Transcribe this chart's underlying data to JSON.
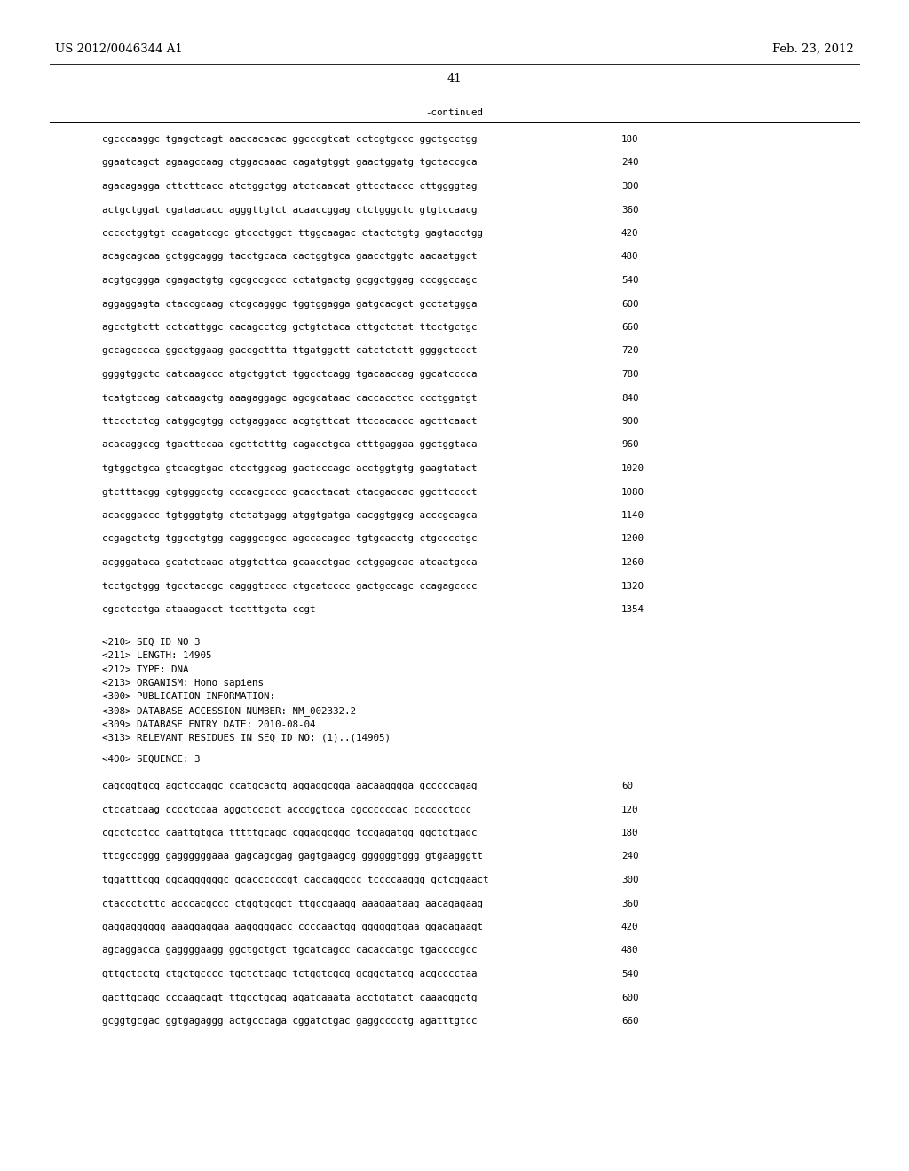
{
  "header_left": "US 2012/0046344 A1",
  "header_right": "Feb. 23, 2012",
  "page_number": "41",
  "continued_label": "-continued",
  "background_color": "#ffffff",
  "text_color": "#000000",
  "font_size_header": 9.5,
  "font_size_body": 7.8,
  "font_size_page": 9.5,
  "sequence_lines_part1": [
    [
      "cgcccaaggc tgagctcagt aaccacacac ggcccgtcat cctcgtgccc ggctgcctgg",
      "180"
    ],
    [
      "ggaatcagct agaagccaag ctggacaaac cagatgtggt gaactggatg tgctaccgca",
      "240"
    ],
    [
      "agacagagga cttcttcacc atctggctgg atctcaacat gttcctaccc cttggggtag",
      "300"
    ],
    [
      "actgctggat cgataacacc agggttgtct acaaccggag ctctgggctc gtgtccaacg",
      "360"
    ],
    [
      "ccccctggtgt ccagatccgc gtccctggct ttggcaagac ctactctgtg gagtacctgg",
      "420"
    ],
    [
      "acagcagcaa gctggcaggg tacctgcaca cactggtgca gaacctggtc aacaatggct",
      "480"
    ],
    [
      "acgtgcggga cgagactgtg cgcgccgccc cctatgactg gcggctggag cccggccagc",
      "540"
    ],
    [
      "aggaggagta ctaccgcaag ctcgcagggc tggtggagga gatgcacgct gcctatggga",
      "600"
    ],
    [
      "agcctgtctt cctcattggc cacagcctcg gctgtctaca cttgctctat ttcctgctgc",
      "660"
    ],
    [
      "gccagcccca ggcctggaag gaccgcttta ttgatggctt catctctctt ggggctccct",
      "720"
    ],
    [
      "ggggtggctc catcaagccc atgctggtct tggcctcagg tgacaaccag ggcatcccca",
      "780"
    ],
    [
      "tcatgtccag catcaagctg aaagaggagc agcgcataac caccacctcc ccctggatgt",
      "840"
    ],
    [
      "ttccctctcg catggcgtgg cctgaggacc acgtgttcat ttccacaccc agcttcaact",
      "900"
    ],
    [
      "acacaggccg tgacttccaa cgcttctttg cagacctgca ctttgaggaa ggctggtaca",
      "960"
    ],
    [
      "tgtggctgca gtcacgtgac ctcctggcag gactcccagc acctggtgtg gaagtatact",
      "1020"
    ],
    [
      "gtctttacgg cgtgggcctg cccacgcccc gcacctacat ctacgaccac ggcttcccct",
      "1080"
    ],
    [
      "acacggaccc tgtgggtgtg ctctatgagg atggtgatga cacggtggcg acccgcagca",
      "1140"
    ],
    [
      "ccgagctctg tggcctgtgg cagggccgcc agccacagcc tgtgcacctg ctgcccctgc",
      "1200"
    ],
    [
      "acgggataca gcatctcaac atggtcttca gcaacctgac cctggagcac atcaatgcca",
      "1260"
    ],
    [
      "tcctgctggg tgcctaccgc cagggtcccc ctgcatcccc gactgccagc ccagagcccc",
      "1320"
    ],
    [
      "cgcctcctga ataaagacct tcctttgcta ccgt",
      "1354"
    ]
  ],
  "metadata_lines": [
    "<210> SEQ ID NO 3",
    "<211> LENGTH: 14905",
    "<212> TYPE: DNA",
    "<213> ORGANISM: Homo sapiens",
    "<300> PUBLICATION INFORMATION:",
    "<308> DATABASE ACCESSION NUMBER: NM_002332.2",
    "<309> DATABASE ENTRY DATE: 2010-08-04",
    "<313> RELEVANT RESIDUES IN SEQ ID NO: (1)..(14905)"
  ],
  "sequence_label": "<400> SEQUENCE: 3",
  "sequence_lines_part2": [
    [
      "cagcggtgcg agctccaggc ccatgcactg aggaggcgga aacaagggga gcccccagag",
      "60"
    ],
    [
      "ctccatcaag cccctccaa aggctcccct acccggtcca cgccccccac cccccctccc",
      "120"
    ],
    [
      "cgcctcctcc caattgtgca tttttgcagc cggaggcggc tccgagatgg ggctgtgagc",
      "180"
    ],
    [
      "ttcgcccggg gaggggggaaa gagcagcgag gagtgaagcg ggggggtggg gtgaagggtt",
      "240"
    ],
    [
      "tggatttcgg ggcaggggggc gcaccccccgt cagcaggccc tccccaaggg gctcggaact",
      "300"
    ],
    [
      "ctaccctcttc acccacgccc ctggtgcgct ttgccgaagg aaagaataag aacagagaag",
      "360"
    ],
    [
      "gaggagggggg aaaggaggaa aagggggacc ccccaactgg ggggggtgaa ggagagaagt",
      "420"
    ],
    [
      "agcaggacca gaggggaagg ggctgctgct tgcatcagcc cacaccatgc tgaccccgcc",
      "480"
    ],
    [
      "gttgctcctg ctgctgcccc tgctctcagc tctggtcgcg gcggctatcg acgcccctaa",
      "540"
    ],
    [
      "gacttgcagc cccaagcagt ttgcctgcag agatcaaata acctgtatct caaagggctg",
      "600"
    ],
    [
      "gcggtgcgac ggtgagaggg actgcccaga cggatctgac gaggcccctg agatttgtcc",
      "660"
    ]
  ]
}
